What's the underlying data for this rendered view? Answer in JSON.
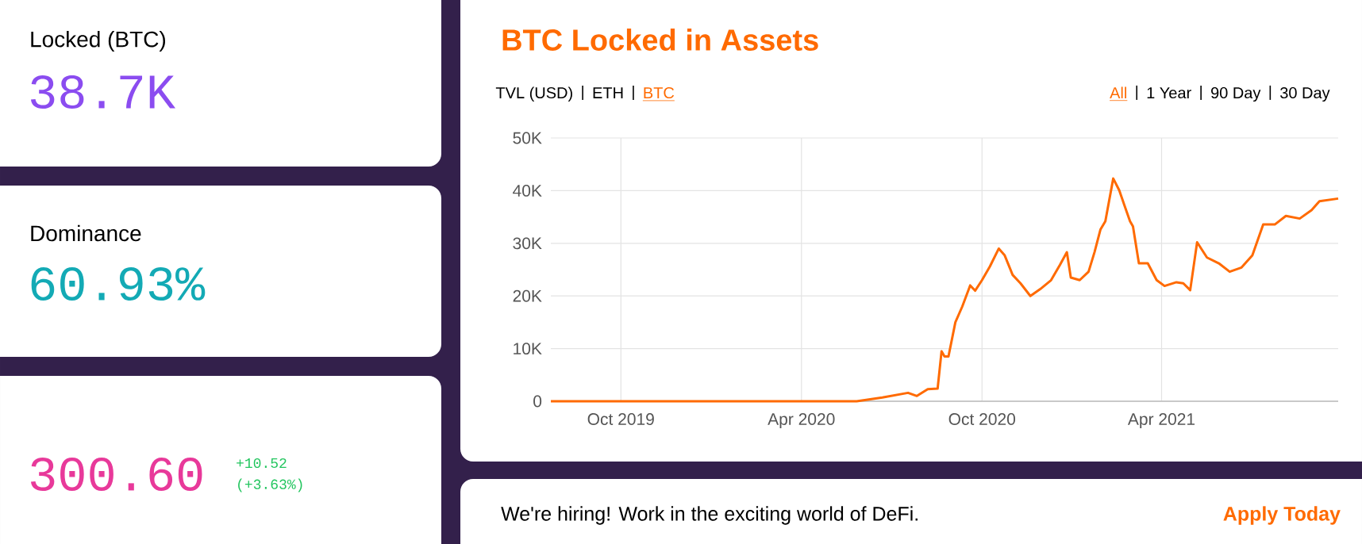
{
  "chart_data": [
    {
      "type": "other",
      "title": "Locked (BTC)",
      "annotations": [
        "38.7K"
      ]
    },
    {
      "type": "other",
      "title": "Dominance",
      "annotations": [
        "60.93%"
      ]
    },
    {
      "type": "other",
      "annotations": [
        "300.60",
        "+10.52",
        "(+3.63%)"
      ]
    },
    {
      "type": "line",
      "title": "BTC Locked in Assets",
      "annotations": [
        "TVL (USD)",
        "ETH",
        "BTC",
        "All",
        "1 Year",
        "90 Day",
        "30 Day"
      ],
      "xlim": [
        "2019-07-22",
        "2021-09-27"
      ],
      "xticks": [
        {
          "value": "2019-10-01",
          "label": "Oct 2019"
        },
        {
          "value": "2020-04-01",
          "label": "Apr 2020"
        },
        {
          "value": "2020-10-01",
          "label": "Oct 2020"
        },
        {
          "value": "2021-04-01",
          "label": "Apr 2021"
        }
      ],
      "ylim": [
        0,
        50000
      ],
      "yticks": [
        {
          "value": 0,
          "label": "0"
        },
        {
          "value": 10000,
          "label": "10K"
        },
        {
          "value": 20000,
          "label": "20K"
        },
        {
          "value": 30000,
          "label": "30K"
        },
        {
          "value": 40000,
          "label": "40K"
        },
        {
          "value": 50000,
          "label": "50K"
        }
      ],
      "grid": true,
      "marker": "none",
      "line_style": "solid",
      "series": [
        {
          "color": "#ff6a00",
          "x": [
            "2019-07-22",
            "2020-05-27",
            "2020-06-22",
            "2020-07-18",
            "2020-07-27",
            "2020-08-07",
            "2020-08-17",
            "2020-08-21",
            "2020-08-24",
            "2020-08-28",
            "2020-09-04",
            "2020-09-11",
            "2020-09-19",
            "2020-09-24",
            "2020-10-01",
            "2020-10-09",
            "2020-10-18",
            "2020-10-24",
            "2020-11-01",
            "2020-11-09",
            "2020-11-19",
            "2020-11-29",
            "2020-12-10",
            "2020-12-19",
            "2020-12-26",
            "2020-12-30",
            "2021-01-08",
            "2021-01-17",
            "2021-01-23",
            "2021-01-29",
            "2021-02-03",
            "2021-02-11",
            "2021-02-17",
            "2021-02-22",
            "2021-02-28",
            "2021-03-03",
            "2021-03-09",
            "2021-03-18",
            "2021-03-27",
            "2021-04-04",
            "2021-04-16",
            "2021-04-23",
            "2021-04-30",
            "2021-05-07",
            "2021-05-17",
            "2021-05-29",
            "2021-06-09",
            "2021-06-21",
            "2021-07-02",
            "2021-07-13",
            "2021-07-25",
            "2021-08-05",
            "2021-08-19",
            "2021-08-31",
            "2021-09-08",
            "2021-09-27"
          ],
          "values": [
            0,
            0,
            700,
            1600,
            1000,
            2300,
            2400,
            9500,
            8500,
            8500,
            15000,
            18000,
            22000,
            21000,
            23000,
            25600,
            29000,
            27700,
            24000,
            22400,
            20000,
            21300,
            23000,
            25900,
            28300,
            23500,
            23000,
            24600,
            28300,
            32600,
            34200,
            42300,
            40100,
            37400,
            34200,
            33200,
            26200,
            26200,
            23000,
            21900,
            22600,
            22400,
            21100,
            30200,
            27300,
            26200,
            24600,
            25400,
            27700,
            33600,
            33600,
            35200,
            34700,
            36300,
            38000,
            38500
          ]
        }
      ]
    },
    {
      "type": "other",
      "annotations": [
        "We're hiring! Work in the exciting world of DeFi.",
        "Apply Today"
      ]
    }
  ]
}
